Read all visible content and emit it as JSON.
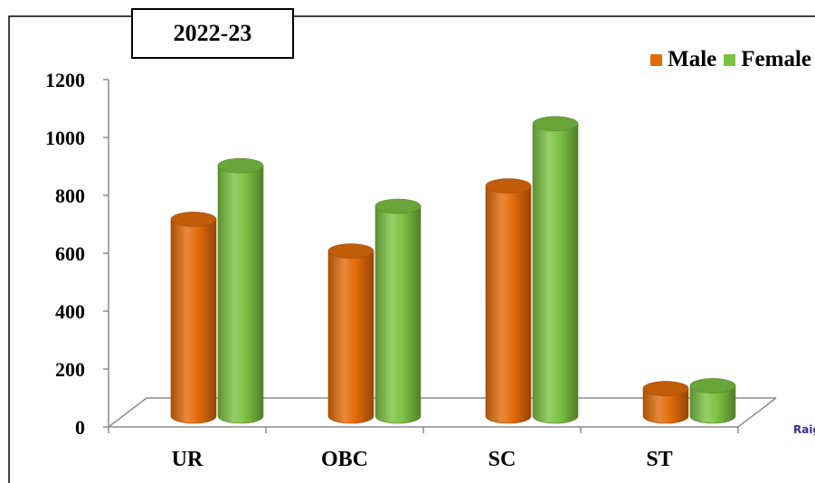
{
  "chart_data": {
    "type": "bar",
    "title": "2022-23",
    "categories": [
      "UR",
      "OBC",
      "SC",
      "ST"
    ],
    "series": [
      {
        "name": "Male",
        "values": [
          680,
          570,
          795,
          95
        ],
        "color": "#e36c0a"
      },
      {
        "name": "Female",
        "values": [
          865,
          725,
          1010,
          105
        ],
        "color": "#7cc242"
      }
    ],
    "ylim": [
      0,
      1200
    ],
    "yticks": [
      "0",
      "200",
      "400",
      "600",
      "800",
      "1000",
      "1200"
    ],
    "grid": false,
    "legend": "top-right",
    "style": "3d-cylinder"
  },
  "corner_text": "Raig"
}
